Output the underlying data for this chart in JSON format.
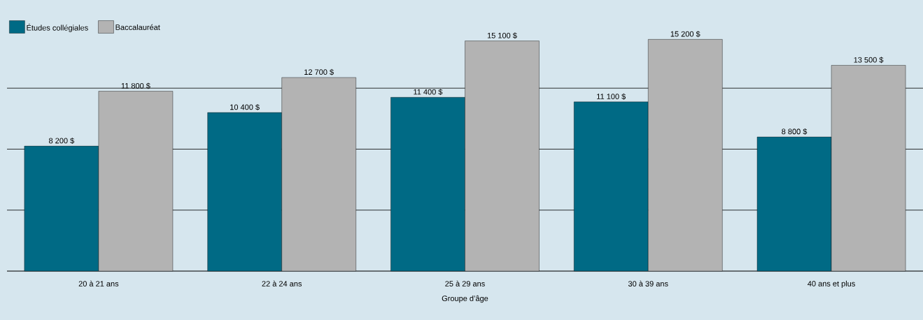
{
  "chart_data": {
    "type": "bar",
    "xlabel": "Groupe d’âge",
    "categories": [
      "20 à 21 ans",
      "22 à 24 ans",
      "25 à 29 ans",
      "30 à 39 ans",
      "40 ans et plus"
    ],
    "series": [
      {
        "name": "Études collégiales",
        "color": "#006a85",
        "values": [
          8200,
          10400,
          11400,
          11100,
          8800
        ],
        "value_labels": [
          "8 200 $",
          "10 400 $",
          "11 400 $",
          "11 100 $",
          "8 800 $"
        ]
      },
      {
        "name": "Baccalauréat",
        "color": "#b3b3b3",
        "values": [
          11800,
          12700,
          15100,
          15200,
          13500
        ],
        "value_labels": [
          "11 800 $",
          "12 700 $",
          "15 100 $",
          "15 200 $",
          "13 500 $"
        ]
      }
    ],
    "yticks": [
      {
        "value": 0,
        "label": null
      },
      {
        "value": 4000,
        "label": null
      },
      {
        "value": 8000,
        "label": null
      },
      {
        "value": 12000,
        "label": null
      }
    ],
    "grid": "y",
    "legend": "top left"
  }
}
